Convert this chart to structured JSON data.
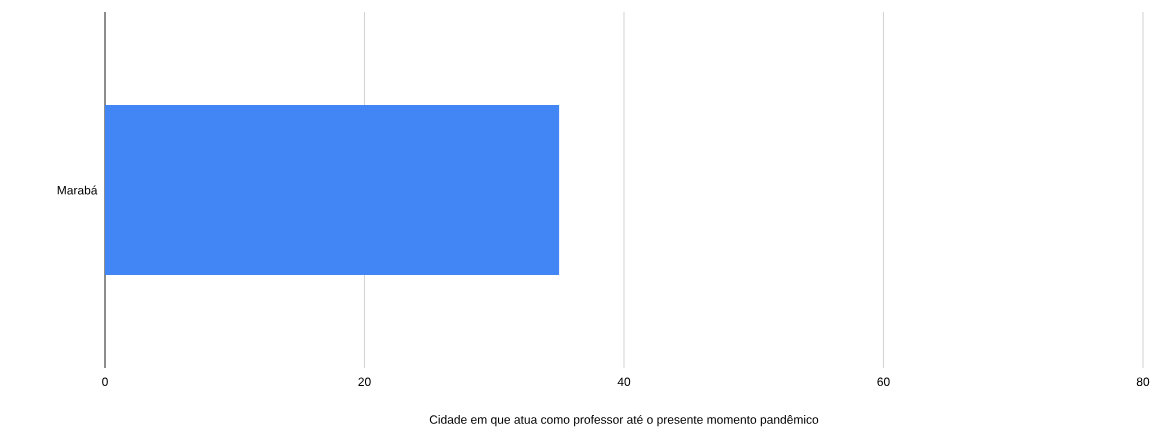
{
  "chart_data": {
    "type": "bar",
    "orientation": "horizontal",
    "categories": [
      "Marabá"
    ],
    "values": [
      35
    ],
    "color": "#4285f4",
    "xlim": [
      0,
      80
    ],
    "xticks": [
      0,
      20,
      40,
      60,
      80
    ],
    "grid": "x",
    "xlabel": "Cidade em que atua como professor até o presente momento pandêmico"
  }
}
